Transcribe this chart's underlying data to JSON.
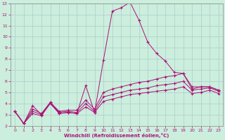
{
  "xlabel": "Windchill (Refroidissement éolien,°C)",
  "background_color": "#cceedd",
  "grid_color": "#aacccc",
  "line_color": "#aa1177",
  "xlim": [
    -0.5,
    23.5
  ],
  "ylim": [
    2,
    13
  ],
  "xticks": [
    0,
    1,
    2,
    3,
    4,
    5,
    6,
    7,
    8,
    9,
    10,
    11,
    12,
    13,
    14,
    15,
    16,
    17,
    18,
    19,
    20,
    21,
    22,
    23
  ],
  "yticks": [
    2,
    3,
    4,
    5,
    6,
    7,
    8,
    9,
    10,
    11,
    12,
    13
  ],
  "line1_x": [
    0,
    1,
    2,
    3,
    4,
    5,
    6,
    7,
    8,
    9,
    10,
    11,
    12,
    13,
    14,
    15,
    16,
    17,
    18,
    19,
    20,
    21,
    22,
    23
  ],
  "line1_y": [
    3.3,
    2.2,
    3.8,
    3.0,
    4.1,
    3.1,
    3.2,
    3.1,
    5.6,
    3.2,
    7.9,
    12.3,
    12.6,
    13.1,
    11.5,
    9.5,
    8.5,
    7.8,
    6.8,
    6.7,
    5.3,
    5.5,
    5.5,
    5.2
  ],
  "line2_x": [
    0,
    1,
    2,
    3,
    4,
    5,
    6,
    7,
    8,
    9,
    10,
    11,
    12,
    13,
    14,
    15,
    16,
    17,
    18,
    19,
    20,
    21,
    22,
    23
  ],
  "line2_y": [
    3.3,
    2.2,
    3.5,
    3.1,
    4.1,
    3.3,
    3.4,
    3.4,
    4.3,
    3.5,
    5.0,
    5.3,
    5.5,
    5.7,
    5.9,
    6.0,
    6.2,
    6.4,
    6.5,
    6.7,
    5.5,
    5.5,
    5.5,
    5.2
  ],
  "line3_x": [
    0,
    1,
    2,
    3,
    4,
    5,
    6,
    7,
    8,
    9,
    10,
    11,
    12,
    13,
    14,
    15,
    16,
    17,
    18,
    19,
    20,
    21,
    22,
    23
  ],
  "line3_y": [
    3.3,
    2.2,
    3.3,
    3.0,
    4.1,
    3.2,
    3.3,
    3.2,
    4.0,
    3.3,
    4.6,
    4.8,
    5.0,
    5.2,
    5.3,
    5.4,
    5.6,
    5.7,
    5.8,
    6.0,
    5.2,
    5.3,
    5.4,
    5.1
  ],
  "line4_x": [
    0,
    1,
    2,
    3,
    4,
    5,
    6,
    7,
    8,
    9,
    10,
    11,
    12,
    13,
    14,
    15,
    16,
    17,
    18,
    19,
    20,
    21,
    22,
    23
  ],
  "line4_y": [
    3.3,
    2.2,
    3.1,
    2.9,
    4.0,
    3.1,
    3.2,
    3.1,
    3.7,
    3.2,
    4.2,
    4.4,
    4.6,
    4.8,
    4.9,
    5.0,
    5.1,
    5.2,
    5.3,
    5.5,
    4.9,
    5.0,
    5.2,
    4.9
  ]
}
